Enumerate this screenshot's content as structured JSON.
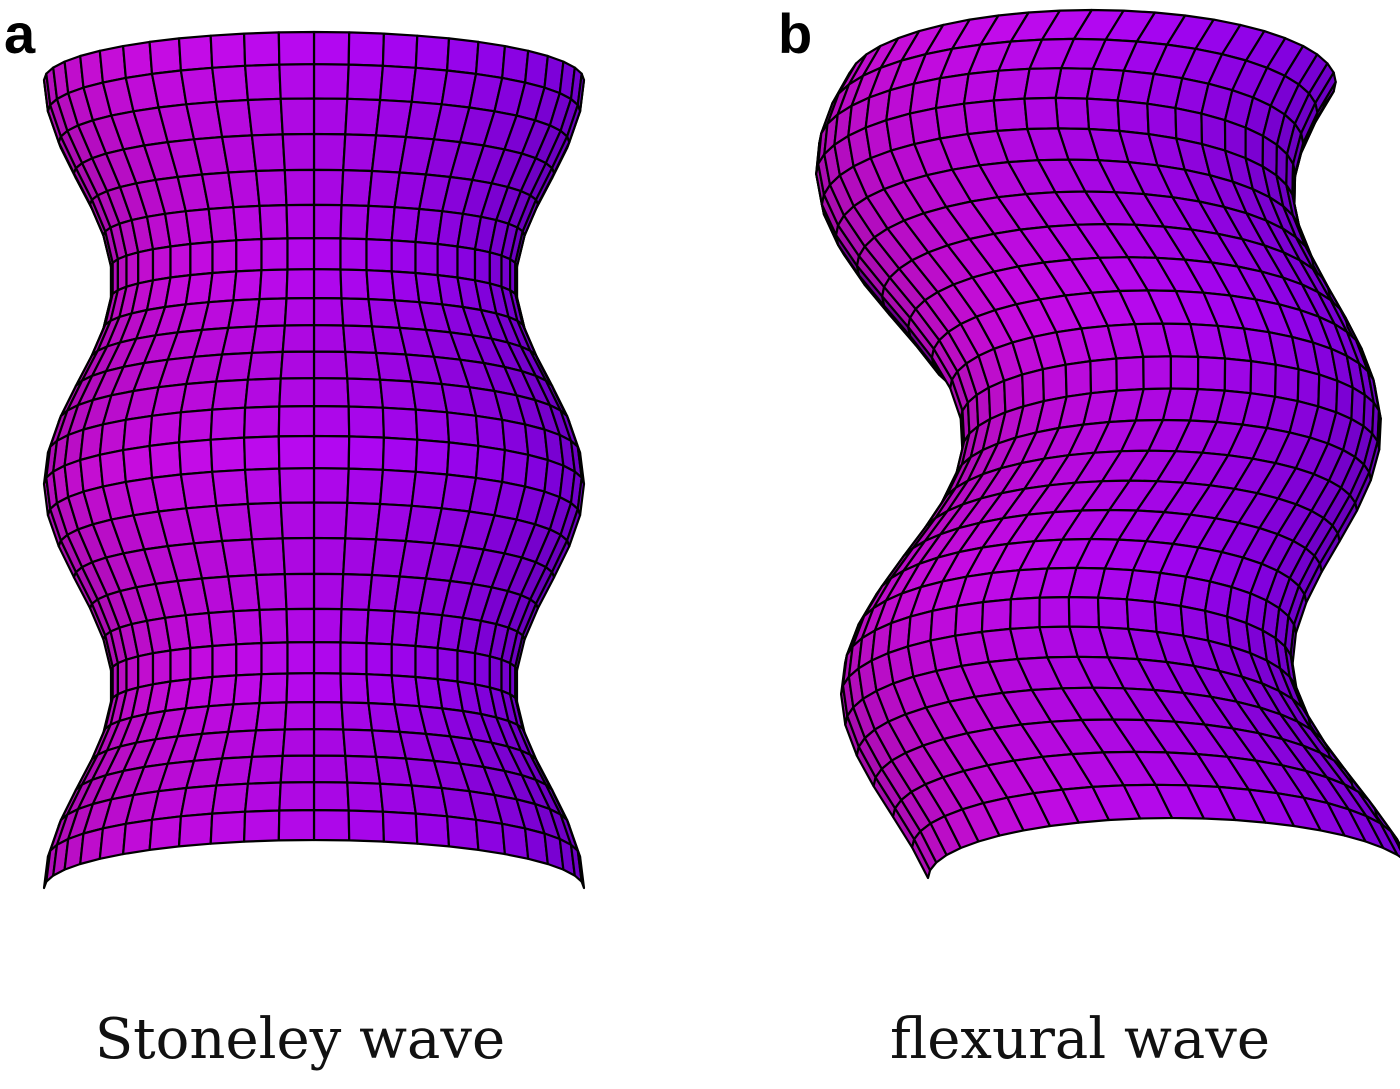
{
  "panels": [
    {
      "letter": "a",
      "caption": "Stoneley wave",
      "mode": "stoneley-breathing"
    },
    {
      "letter": "b",
      "caption": "flexural wave",
      "mode": "flexural-bending"
    }
  ],
  "colors": {
    "surface_left": "#e010e8",
    "surface_right": "#8a00f8",
    "surface_inside": "#6a0088",
    "grid_line": "#000000"
  }
}
